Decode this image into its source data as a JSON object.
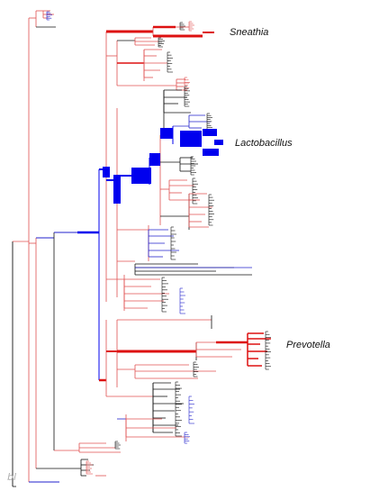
{
  "clades": {
    "sneathia": "Sneathia",
    "lactobacillus": "Lactobacillus",
    "prevotella": "Prevotella"
  },
  "corner_mark": "bl",
  "colors": {
    "red_branch": "#e05050",
    "strong_red": "#dd1111",
    "blue_branch": "#2222cc",
    "strong_blue": "#0000ee",
    "black_branch": "#111111",
    "label_text": "#111111",
    "corner_mark": "#b0b0b0"
  }
}
